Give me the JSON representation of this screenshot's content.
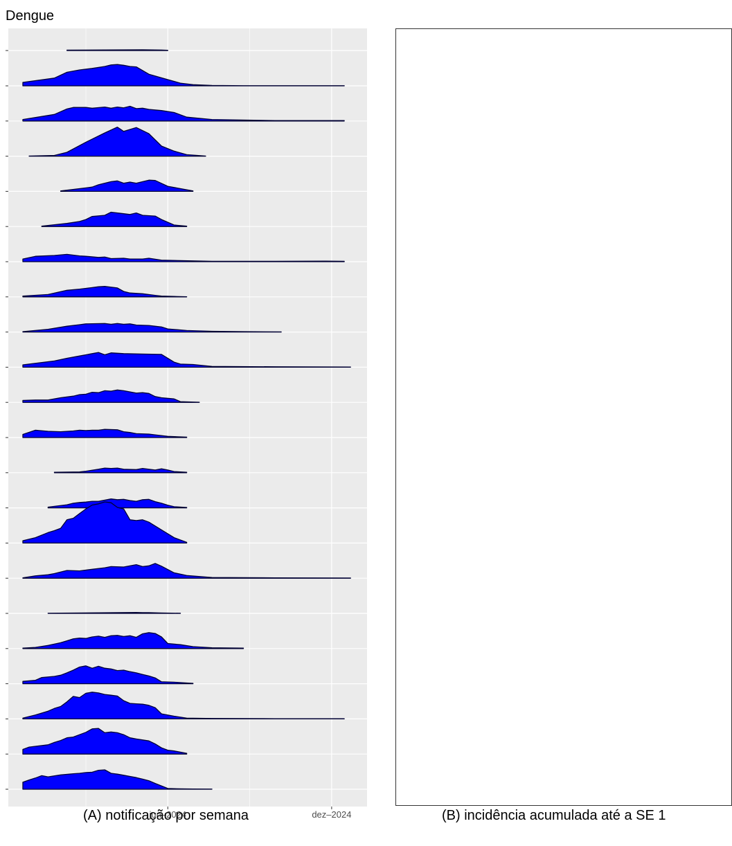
{
  "page": {
    "title": "Dengue"
  },
  "panel_a": {
    "caption": "(A) notificação por semana"
  },
  "panel_b": {
    "caption": "(B) incidência acumulada até a SE 1"
  },
  "colors": {
    "fill": "#0000ff",
    "stroke": "#000033",
    "panel_bg": "#ebebeb",
    "grid": "#ffffff"
  },
  "chart_data": [
    {
      "type": "area",
      "title": "Dengue",
      "xlabel": "",
      "ylabel": "",
      "x_ticks": [
        {
          "value": 23.0,
          "label": "jun–2024"
        },
        {
          "value": 49.0,
          "label": "dez–2024"
        }
      ],
      "x_minor_gridlines": [
        10.0,
        36.0
      ],
      "xlim": [
        -1.5,
        54.5
      ],
      "y_tick_labels_visible": false,
      "grid": true,
      "series": [
        {
          "x": [
            7,
            13,
            19,
            22,
            23
          ],
          "values": [
            0.05,
            0.07,
            0.1,
            0.06,
            0.03
          ]
        },
        {
          "x": [
            0,
            5,
            7,
            9,
            11,
            13,
            14,
            15,
            16,
            17,
            18,
            20,
            23,
            25,
            27,
            30,
            35,
            40,
            45,
            51
          ],
          "values": [
            0.45,
            1.0,
            1.75,
            2.05,
            2.25,
            2.5,
            2.7,
            2.75,
            2.65,
            2.5,
            2.45,
            1.5,
            0.8,
            0.35,
            0.15,
            0.05,
            0.02,
            0.02,
            0.02,
            0.02
          ]
        },
        {
          "x": [
            0,
            5,
            7,
            8,
            10,
            11,
            13,
            14,
            15,
            16,
            17,
            18,
            19,
            20,
            22,
            24,
            26,
            30,
            40,
            51
          ],
          "values": [
            0.2,
            0.85,
            1.55,
            1.75,
            1.75,
            1.65,
            1.8,
            1.65,
            1.8,
            1.7,
            1.9,
            1.6,
            1.65,
            1.5,
            1.35,
            1.1,
            0.5,
            0.2,
            0.05,
            0.05
          ]
        },
        {
          "x": [
            1,
            5,
            7,
            10,
            13,
            15,
            16,
            18,
            20,
            22,
            24,
            26,
            29
          ],
          "values": [
            0.02,
            0.1,
            0.5,
            1.8,
            3.0,
            3.75,
            3.2,
            3.7,
            2.9,
            1.3,
            0.65,
            0.2,
            0.02
          ]
        },
        {
          "x": [
            6,
            10,
            11,
            12,
            14,
            15,
            16,
            17,
            18,
            20,
            21,
            23,
            24,
            27
          ],
          "values": [
            0.05,
            0.45,
            0.55,
            0.85,
            1.25,
            1.35,
            1.05,
            1.2,
            1.05,
            1.45,
            1.4,
            0.65,
            0.5,
            0.05
          ]
        },
        {
          "x": [
            3,
            7,
            9,
            10,
            11,
            13,
            14,
            16,
            17,
            18,
            19,
            21,
            22,
            24,
            26
          ],
          "values": [
            0.05,
            0.4,
            0.65,
            0.9,
            1.3,
            1.45,
            1.85,
            1.65,
            1.55,
            1.75,
            1.45,
            1.35,
            0.9,
            0.2,
            0.05
          ]
        },
        {
          "x": [
            0,
            2,
            5,
            7,
            9,
            10,
            12,
            13,
            14,
            16,
            17,
            19,
            20,
            22,
            30,
            40,
            48,
            51
          ],
          "values": [
            0.35,
            0.7,
            0.8,
            0.95,
            0.75,
            0.7,
            0.55,
            0.6,
            0.4,
            0.45,
            0.35,
            0.35,
            0.45,
            0.2,
            0.05,
            0.05,
            0.08,
            0.05
          ]
        },
        {
          "x": [
            0,
            4,
            7,
            9,
            11,
            12,
            13,
            15,
            16,
            17,
            19,
            21,
            22,
            24,
            26
          ],
          "values": [
            0.1,
            0.3,
            0.85,
            1.0,
            1.2,
            1.3,
            1.35,
            1.15,
            0.7,
            0.5,
            0.4,
            0.2,
            0.1,
            0.05,
            0.02
          ]
        },
        {
          "x": [
            0,
            4,
            7,
            9,
            10,
            13,
            14,
            15,
            16,
            17,
            18,
            20,
            22,
            23,
            26,
            30,
            35,
            41
          ],
          "values": [
            0.05,
            0.35,
            0.75,
            0.95,
            1.05,
            1.1,
            1.0,
            1.1,
            1.0,
            1.05,
            0.9,
            0.85,
            0.65,
            0.4,
            0.2,
            0.1,
            0.05,
            0.02
          ]
        },
        {
          "x": [
            0,
            5,
            7,
            9,
            10,
            11,
            12,
            13,
            14,
            16,
            19,
            22,
            24,
            25,
            27,
            30,
            40,
            52
          ],
          "values": [
            0.3,
            0.8,
            1.15,
            1.45,
            1.6,
            1.75,
            1.9,
            1.6,
            1.85,
            1.75,
            1.7,
            1.65,
            0.65,
            0.4,
            0.35,
            0.1,
            0.05,
            0.02
          ]
        },
        {
          "x": [
            0,
            2,
            4,
            6,
            8,
            9,
            10,
            11,
            12,
            13,
            14,
            15,
            16,
            18,
            19,
            20,
            21,
            22,
            24,
            25,
            28
          ],
          "values": [
            0.25,
            0.3,
            0.3,
            0.6,
            0.8,
            1.0,
            1.05,
            1.3,
            1.25,
            1.5,
            1.45,
            1.6,
            1.5,
            1.2,
            1.25,
            1.15,
            0.75,
            0.6,
            0.45,
            0.1,
            0.02
          ]
        },
        {
          "x": [
            0,
            2,
            4,
            6,
            8,
            9,
            10,
            11,
            12,
            13,
            15,
            16,
            17,
            18,
            20,
            21,
            23,
            26
          ],
          "values": [
            0.4,
            0.95,
            0.8,
            0.75,
            0.85,
            0.95,
            0.9,
            0.95,
            0.95,
            1.05,
            1.0,
            0.75,
            0.65,
            0.5,
            0.45,
            0.35,
            0.15,
            0.05
          ]
        },
        {
          "x": [
            5,
            9,
            10,
            12,
            13,
            14,
            15,
            16,
            18,
            19,
            21,
            22,
            23,
            24,
            26
          ],
          "values": [
            0.05,
            0.1,
            0.2,
            0.45,
            0.6,
            0.55,
            0.6,
            0.45,
            0.4,
            0.55,
            0.35,
            0.5,
            0.35,
            0.15,
            0.05
          ]
        },
        {
          "x": [
            4,
            7,
            8,
            9,
            10,
            11,
            12,
            13,
            14,
            15,
            16,
            17,
            18,
            19,
            20,
            21,
            22,
            23,
            24,
            26
          ],
          "values": [
            0.1,
            0.4,
            0.6,
            0.7,
            0.75,
            0.85,
            0.85,
            1.0,
            1.15,
            1.05,
            1.1,
            0.95,
            0.85,
            1.05,
            1.1,
            0.8,
            0.6,
            0.35,
            0.15,
            0.05
          ]
        },
        {
          "x": [
            0,
            2,
            4,
            5,
            6,
            7,
            8,
            9,
            10,
            11,
            12,
            13,
            14,
            15,
            16,
            17,
            18,
            19,
            20,
            21,
            22,
            24,
            26
          ],
          "values": [
            0.3,
            0.7,
            1.35,
            1.6,
            1.9,
            3.0,
            3.2,
            3.8,
            4.4,
            4.9,
            5.05,
            5.3,
            5.2,
            4.6,
            4.4,
            3.0,
            2.9,
            3.0,
            2.7,
            2.2,
            1.7,
            0.7,
            0.1
          ]
        },
        {
          "x": [
            0,
            2,
            4,
            5,
            6,
            7,
            9,
            11,
            13,
            14,
            16,
            18,
            19,
            20,
            21,
            22,
            24,
            26,
            30,
            40,
            52
          ],
          "values": [
            0.05,
            0.3,
            0.45,
            0.6,
            0.8,
            1.0,
            0.95,
            1.15,
            1.35,
            1.5,
            1.45,
            1.75,
            1.5,
            1.6,
            1.9,
            1.55,
            0.7,
            0.35,
            0.1,
            0.05,
            0.03
          ]
        },
        {
          "x": [
            4,
            9,
            12,
            15,
            18,
            19,
            20,
            22,
            25
          ],
          "values": [
            0.02,
            0.05,
            0.08,
            0.1,
            0.12,
            0.1,
            0.1,
            0.05,
            0.02
          ]
        },
        {
          "x": [
            0,
            2,
            4,
            6,
            7,
            8,
            9,
            10,
            11,
            12,
            13,
            14,
            15,
            16,
            17,
            18,
            19,
            20,
            21,
            22,
            23,
            25,
            27,
            30,
            35
          ],
          "values": [
            0.05,
            0.15,
            0.4,
            0.75,
            1.0,
            1.25,
            1.35,
            1.3,
            1.5,
            1.6,
            1.45,
            1.65,
            1.7,
            1.55,
            1.65,
            1.45,
            1.9,
            2.05,
            1.95,
            1.5,
            0.65,
            0.5,
            0.25,
            0.1,
            0.05
          ]
        },
        {
          "x": [
            0,
            2,
            3,
            5,
            6,
            7,
            8,
            9,
            10,
            11,
            12,
            13,
            14,
            15,
            16,
            17,
            18,
            19,
            20,
            21,
            22,
            24,
            26,
            27
          ],
          "values": [
            0.3,
            0.45,
            0.8,
            0.95,
            1.1,
            1.4,
            1.75,
            2.15,
            2.3,
            2.0,
            2.25,
            2.0,
            1.9,
            1.7,
            1.75,
            1.55,
            1.4,
            1.2,
            1.0,
            0.75,
            0.25,
            0.2,
            0.1,
            0.05
          ]
        },
        {
          "x": [
            0,
            2,
            4,
            5,
            6,
            7,
            8,
            9,
            10,
            11,
            12,
            13,
            14,
            15,
            16,
            17,
            18,
            19,
            20,
            21,
            22,
            24,
            26,
            30,
            40,
            51
          ],
          "values": [
            0.1,
            0.5,
            1.0,
            1.35,
            1.6,
            2.2,
            2.9,
            2.75,
            3.3,
            3.45,
            3.35,
            3.15,
            3.05,
            2.95,
            2.35,
            2.0,
            1.95,
            1.9,
            1.75,
            1.45,
            0.65,
            0.35,
            0.1,
            0.05,
            0.03,
            0.03
          ]
        },
        {
          "x": [
            0,
            1,
            2,
            4,
            5,
            6,
            7,
            8,
            9,
            10,
            11,
            12,
            13,
            14,
            15,
            16,
            17,
            18,
            20,
            21,
            22,
            23,
            24,
            26
          ],
          "values": [
            0.6,
            0.9,
            1.0,
            1.2,
            1.5,
            1.75,
            2.1,
            2.2,
            2.5,
            2.8,
            3.25,
            3.3,
            2.75,
            2.85,
            2.75,
            2.5,
            2.1,
            1.95,
            1.7,
            1.3,
            0.8,
            0.5,
            0.4,
            0.1
          ]
        },
        {
          "x": [
            0,
            1,
            2,
            3,
            4,
            6,
            8,
            9,
            10,
            11,
            12,
            13,
            14,
            15,
            16,
            17,
            18,
            19,
            20,
            21,
            23,
            25,
            27,
            30
          ],
          "values": [
            0.9,
            1.2,
            1.45,
            1.75,
            1.6,
            1.85,
            2.0,
            2.05,
            2.15,
            2.2,
            2.45,
            2.5,
            2.05,
            1.95,
            1.8,
            1.65,
            1.5,
            1.3,
            1.1,
            0.75,
            0.1,
            0.05,
            0.03,
            0.02
          ]
        }
      ]
    }
  ]
}
